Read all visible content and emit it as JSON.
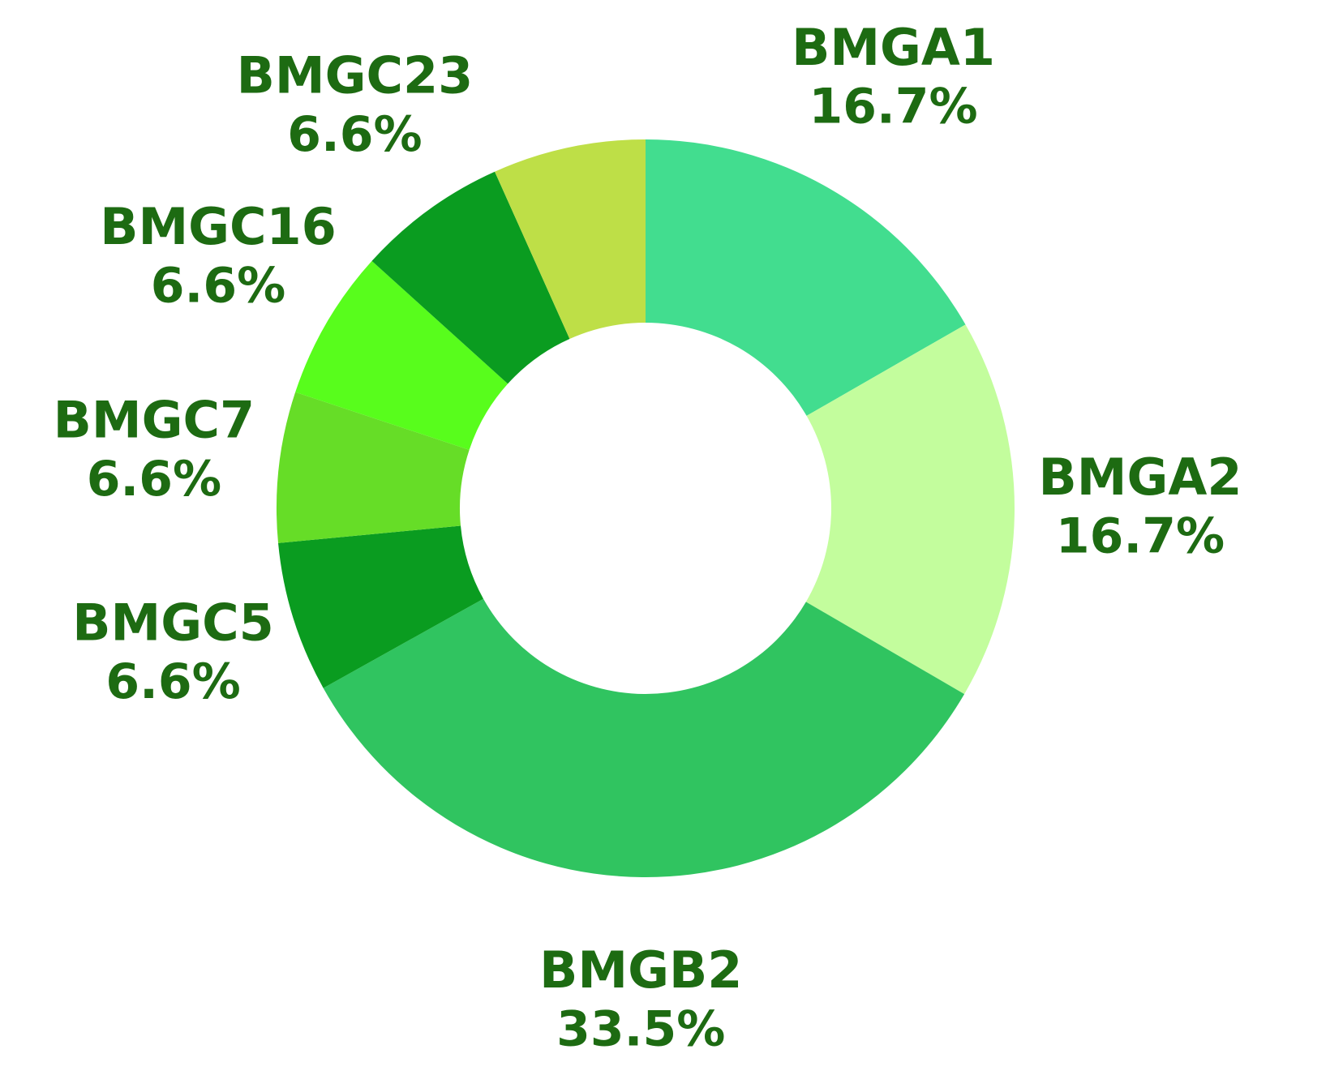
{
  "chart_data": {
    "type": "donut",
    "categories": [
      "BMGA1",
      "BMGA2",
      "BMGB2",
      "BMGC5",
      "BMGC7",
      "BMGC16",
      "BMGC23",
      null
    ],
    "values": [
      16.7,
      16.7,
      33.5,
      6.6,
      6.6,
      6.6,
      6.6,
      6.7
    ],
    "value_labels": [
      "16.7%",
      "16.7%",
      "33.5%",
      "6.6%",
      "6.6%",
      "6.6%",
      "6.6%",
      null
    ],
    "colors": [
      "#42dd8f",
      "#c3fd9d",
      "#30c460",
      "#0a9c20",
      "#66dd27",
      "#58fd1c",
      "#0a9c20",
      "#bedf47"
    ]
  }
}
